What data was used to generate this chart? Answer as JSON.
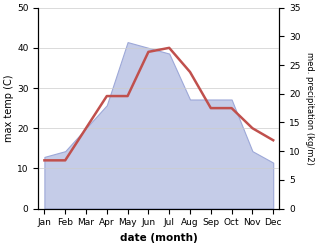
{
  "months": [
    "Jan",
    "Feb",
    "Mar",
    "Apr",
    "May",
    "Jun",
    "Jul",
    "Aug",
    "Sep",
    "Oct",
    "Nov",
    "Dec"
  ],
  "temperature": [
    12,
    12,
    20,
    28,
    28,
    39,
    40,
    34,
    25,
    25,
    20,
    17
  ],
  "precipitation": [
    9,
    10,
    14,
    18,
    29,
    28,
    27,
    19,
    19,
    19,
    10,
    8
  ],
  "temp_ylim": [
    0,
    50
  ],
  "precip_ylim": [
    0,
    35
  ],
  "temp_yticks": [
    0,
    10,
    20,
    30,
    40,
    50
  ],
  "precip_yticks": [
    0,
    5,
    10,
    15,
    20,
    25,
    30,
    35
  ],
  "xlabel": "date (month)",
  "ylabel_left": "max temp (C)",
  "ylabel_right": "med. precipitation (kg/m2)",
  "temp_color": "#c0504d",
  "precip_fill_color": "#c5cce8",
  "precip_edge_color": "#9da8d8",
  "background_color": "#ffffff"
}
